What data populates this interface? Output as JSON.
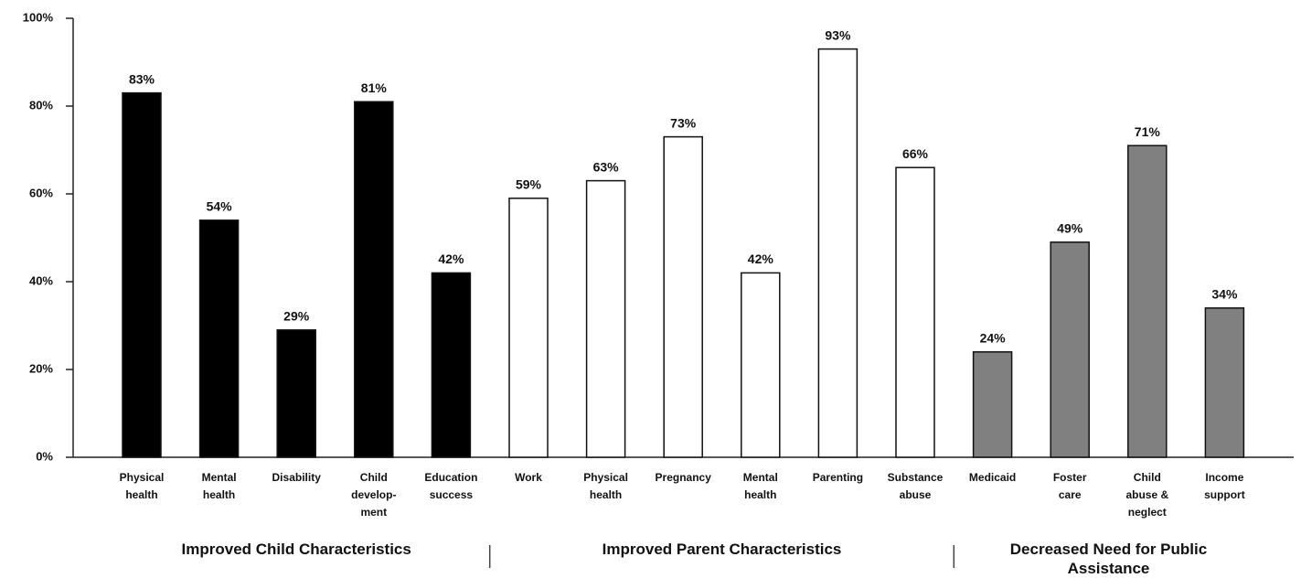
{
  "chart_data": {
    "type": "bar",
    "categories": [
      [
        "Physical",
        "health"
      ],
      [
        "Mental",
        "health"
      ],
      [
        "Disability"
      ],
      [
        "Child",
        "develop-",
        "ment"
      ],
      [
        "Education",
        "success"
      ],
      [
        "Work"
      ],
      [
        "Physical",
        "health"
      ],
      [
        "Pregnancy"
      ],
      [
        "Mental",
        "health"
      ],
      [
        "Parenting"
      ],
      [
        "Substance",
        "abuse"
      ],
      [
        "Medicaid"
      ],
      [
        "Foster",
        "care"
      ],
      [
        "Child",
        "abuse &",
        "neglect"
      ],
      [
        "Income",
        "support"
      ]
    ],
    "series": [
      {
        "name": "Improved Child Characteristics",
        "color": "#000000",
        "values": [
          83,
          54,
          29,
          81,
          42,
          null,
          null,
          null,
          null,
          null,
          null,
          null,
          null,
          null,
          null
        ],
        "value_labels": [
          "83%",
          "54%",
          "29%",
          "81%",
          "42%",
          null,
          null,
          null,
          null,
          null,
          null,
          null,
          null,
          null,
          null
        ]
      },
      {
        "name": "Improved Parent Characteristics",
        "color": "#ffffff",
        "values": [
          null,
          null,
          null,
          null,
          null,
          59,
          63,
          73,
          42,
          93,
          66,
          null,
          null,
          null,
          null
        ],
        "value_labels": [
          null,
          null,
          null,
          null,
          null,
          "59%",
          "63%",
          "73%",
          "42%",
          "93%",
          "66%",
          null,
          null,
          null,
          null
        ]
      },
      {
        "name": "Decreased Need for Public Assistance",
        "color": "#808080",
        "values": [
          null,
          null,
          null,
          null,
          null,
          null,
          null,
          null,
          null,
          null,
          null,
          24,
          49,
          71,
          34
        ],
        "value_labels": [
          null,
          null,
          null,
          null,
          null,
          null,
          null,
          null,
          null,
          null,
          null,
          "24%",
          "49%",
          "71%",
          "34%"
        ]
      }
    ],
    "ylim": [
      0,
      100
    ],
    "yticks": [
      {
        "value": 0,
        "label": "0%"
      },
      {
        "value": 20,
        "label": "20%"
      },
      {
        "value": 40,
        "label": "40%"
      },
      {
        "value": 60,
        "label": "60%"
      },
      {
        "value": 80,
        "label": "80%"
      },
      {
        "value": 100,
        "label": "100%"
      }
    ],
    "grid": false
  }
}
